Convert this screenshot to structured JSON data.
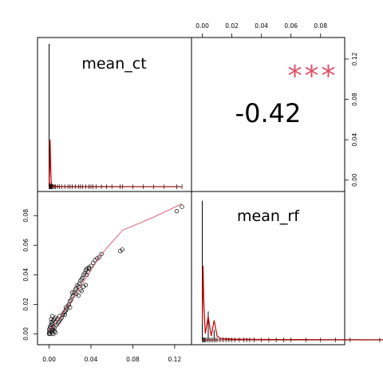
{
  "chart_data": {
    "type": "scatter",
    "layout": "correlation-matrix",
    "variables": [
      "mean_ct",
      "mean_rf"
    ],
    "correlation": {
      "value": "-0.42",
      "stars": "***"
    },
    "axes": {
      "mean_ct": {
        "range": [
          -0.005,
          0.13
        ],
        "ticks": [
          0.0,
          0.04,
          0.08,
          0.12
        ],
        "tick_labels": [
          "0.00",
          "0.04",
          "0.08",
          "0.12"
        ]
      },
      "mean_rf": {
        "range": [
          -0.003,
          0.092
        ],
        "ticks": [
          0.0,
          0.02,
          0.04,
          0.06,
          0.08
        ],
        "tick_labels": [
          "0.00",
          "0.02",
          "0.04",
          "0.06",
          "0.08"
        ]
      },
      "mean_rf_right": {
        "range": [
          -0.005,
          0.135
        ],
        "ticks": [
          0.0,
          0.04,
          0.08,
          0.12
        ],
        "tick_labels": [
          "0.00",
          "0.04",
          "0.08",
          "0.12"
        ]
      }
    },
    "scatter": {
      "x": [
        0.0,
        0.001,
        0.001,
        0.002,
        0.002,
        0.003,
        0.003,
        0.004,
        0.004,
        0.005,
        0.005,
        0.006,
        0.006,
        0.007,
        0.008,
        0.008,
        0.009,
        0.01,
        0.01,
        0.011,
        0.012,
        0.013,
        0.014,
        0.015,
        0.016,
        0.016,
        0.017,
        0.018,
        0.019,
        0.02,
        0.021,
        0.022,
        0.023,
        0.024,
        0.025,
        0.026,
        0.027,
        0.028,
        0.029,
        0.03,
        0.031,
        0.032,
        0.033,
        0.034,
        0.035,
        0.036,
        0.037,
        0.038,
        0.04,
        0.042,
        0.044,
        0.046,
        0.048,
        0.05,
        0.068,
        0.07,
        0.122,
        0.127,
        0.0,
        0.001,
        0.002,
        0.003,
        0.004,
        0.005,
        0.006,
        0.002,
        0.003,
        0.001,
        0.0,
        0.004,
        0.015,
        0.02,
        0.022,
        0.026,
        0.028,
        0.033,
        0.035,
        0.036,
        0.038,
        0.03,
        0.031
      ],
      "y": [
        0.0,
        0.002,
        0.004,
        0.006,
        0.008,
        0.003,
        0.007,
        0.005,
        0.009,
        0.01,
        0.004,
        0.008,
        0.011,
        0.006,
        0.007,
        0.01,
        0.008,
        0.009,
        0.012,
        0.01,
        0.011,
        0.013,
        0.014,
        0.015,
        0.016,
        0.018,
        0.017,
        0.019,
        0.02,
        0.022,
        0.023,
        0.025,
        0.026,
        0.028,
        0.03,
        0.031,
        0.033,
        0.032,
        0.034,
        0.036,
        0.037,
        0.038,
        0.04,
        0.041,
        0.043,
        0.044,
        0.042,
        0.045,
        0.046,
        0.048,
        0.05,
        0.051,
        0.052,
        0.054,
        0.056,
        0.057,
        0.083,
        0.086,
        0.001,
        0.0,
        0.002,
        0.001,
        0.003,
        0.002,
        0.001,
        0.01,
        0.012,
        0.005,
        0.003,
        0.0,
        0.013,
        0.018,
        0.028,
        0.027,
        0.026,
        0.032,
        0.033,
        0.04,
        0.044,
        0.03,
        0.029
      ]
    },
    "smooth_line": {
      "x": [
        0.0,
        0.005,
        0.01,
        0.02,
        0.03,
        0.04,
        0.05,
        0.07,
        0.1,
        0.127
      ],
      "y": [
        0.002,
        0.006,
        0.011,
        0.021,
        0.032,
        0.043,
        0.054,
        0.07,
        0.079,
        0.088
      ]
    },
    "mean_ct_density": {
      "x": [
        0.0,
        0.0005,
        0.001,
        0.0015,
        0.002,
        0.003,
        0.005,
        0.01,
        0.02,
        0.04,
        0.08,
        0.125
      ],
      "y": [
        0.05,
        0.35,
        1.0,
        0.4,
        0.1,
        0.03,
        0.01,
        0.005,
        0.003,
        0.002,
        0.001,
        0.001
      ]
    },
    "mean_ct_histogram": {
      "x": [
        0.0,
        0.001
      ],
      "y": [
        1.0,
        0.03
      ]
    },
    "mean_ct_rug": [
      0.0,
      0.0005,
      0.001,
      0.0015,
      0.002,
      0.0025,
      0.003,
      0.004,
      0.005,
      0.006,
      0.008,
      0.01,
      0.012,
      0.015,
      0.018,
      0.02,
      0.022,
      0.025,
      0.028,
      0.03,
      0.032,
      0.035,
      0.038,
      0.04,
      0.042,
      0.045,
      0.05,
      0.055,
      0.06,
      0.068,
      0.07,
      0.08,
      0.09,
      0.1,
      0.11,
      0.122,
      0.127
    ],
    "mean_rf_density": {
      "x": [
        0.0,
        0.0005,
        0.001,
        0.002,
        0.004,
        0.006,
        0.008,
        0.01,
        0.012,
        0.02,
        0.04,
        0.08,
        0.12,
        0.13
      ],
      "y": [
        0.2,
        0.95,
        0.5,
        0.08,
        0.3,
        0.05,
        0.25,
        0.05,
        0.02,
        0.01,
        0.005,
        0.003,
        0.002,
        0.002
      ]
    },
    "mean_rf_histogram": {
      "x": [
        0.0,
        0.004,
        0.008
      ],
      "y": [
        0.98,
        0.2,
        0.07
      ]
    },
    "mean_rf_rug": [
      0.0,
      0.0005,
      0.001,
      0.0015,
      0.002,
      0.003,
      0.004,
      0.005,
      0.006,
      0.007,
      0.008,
      0.009,
      0.01,
      0.012,
      0.014,
      0.016,
      0.018,
      0.02,
      0.022,
      0.025,
      0.028,
      0.03,
      0.032,
      0.035,
      0.04,
      0.045,
      0.05,
      0.055,
      0.06,
      0.07,
      0.08,
      0.09,
      0.1,
      0.12,
      0.13
    ],
    "colors": {
      "smooth": "#DF536B",
      "density": "#CC0000",
      "stars": "#DF536B"
    }
  }
}
